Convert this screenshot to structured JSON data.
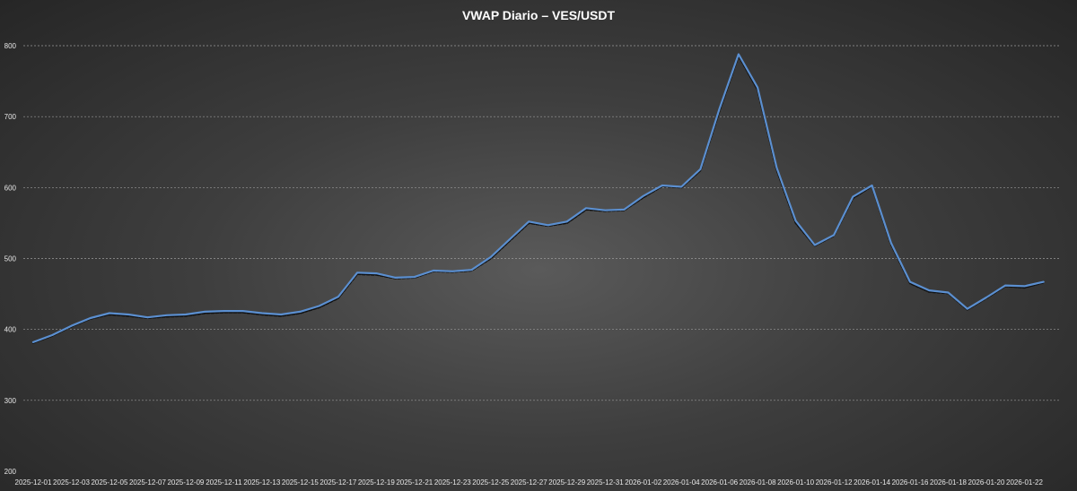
{
  "chart_data": {
    "type": "line",
    "title": "VWAP Diario – VES/USDT",
    "xlabel": "",
    "ylabel": "",
    "ylim": [
      200,
      800
    ],
    "yticks": [
      "200",
      "300",
      "400",
      "500",
      "600",
      "700",
      "800"
    ],
    "grid": true,
    "legend": "none",
    "x": [
      "2025-12-01",
      "2025-12-02",
      "2025-12-03",
      "2025-12-04",
      "2025-12-05",
      "2025-12-06",
      "2025-12-07",
      "2025-12-08",
      "2025-12-09",
      "2025-12-10",
      "2025-12-11",
      "2025-12-12",
      "2025-12-13",
      "2025-12-14",
      "2025-12-15",
      "2025-12-16",
      "2025-12-17",
      "2025-12-18",
      "2025-12-19",
      "2025-12-20",
      "2025-12-21",
      "2025-12-22",
      "2025-12-23",
      "2025-12-24",
      "2025-12-25",
      "2025-12-26",
      "2025-12-27",
      "2025-12-28",
      "2025-12-29",
      "2025-12-30",
      "2025-12-31",
      "2026-01-01",
      "2026-01-02",
      "2026-01-03",
      "2026-01-04",
      "2026-01-05",
      "2026-01-06",
      "2026-01-07",
      "2026-01-08",
      "2026-01-09",
      "2026-01-10",
      "2026-01-11",
      "2026-01-12",
      "2026-01-13",
      "2026-01-14",
      "2026-01-15",
      "2026-01-16",
      "2026-01-17",
      "2026-01-18",
      "2026-01-19",
      "2026-01-20",
      "2026-01-21",
      "2026-01-22",
      "2026-01-23"
    ],
    "xtick_labels": [
      "2025-12-01",
      "2025-12-03",
      "2025-12-05",
      "2025-12-07",
      "2025-12-09",
      "2025-12-11",
      "2025-12-13",
      "2025-12-15",
      "2025-12-17",
      "2025-12-19",
      "2025-12-21",
      "2025-12-23",
      "2025-12-25",
      "2025-12-27",
      "2025-12-29",
      "2025-12-31",
      "2026-01-02",
      "2026-01-04",
      "2026-01-06",
      "2026-01-08",
      "2026-01-10",
      "2026-01-12",
      "2026-01-14",
      "2026-01-16",
      "2026-01-18",
      "2026-01-20",
      "2026-01-22"
    ],
    "series": [
      {
        "style": "solid",
        "color": "#5b8fd0",
        "values": [
          382,
          392,
          405,
          416,
          423,
          421,
          417,
          420,
          421,
          425,
          426,
          426,
          423,
          421,
          425,
          433,
          446,
          480,
          479,
          473,
          474,
          483,
          482,
          484,
          502,
          527,
          552,
          547,
          552,
          571,
          568,
          569,
          588,
          603,
          601,
          626,
          711,
          788,
          741,
          628,
          553,
          519,
          533,
          587,
          603,
          522,
          467,
          455,
          452,
          429,
          445,
          462,
          461,
          467
        ]
      },
      {
        "style": "dashed",
        "color": "#111111",
        "values": [
          381,
          391,
          404,
          415,
          421,
          419,
          416,
          418,
          419,
          423,
          424,
          424,
          421,
          419,
          423,
          431,
          444,
          478,
          477,
          472,
          473,
          482,
          481,
          483,
          500,
          525,
          550,
          546,
          550,
          569,
          567,
          568,
          586,
          602,
          600,
          624,
          708,
          786,
          738,
          625,
          550,
          518,
          532,
          585,
          602,
          520,
          465,
          453,
          451,
          428,
          444,
          461,
          459,
          466
        ]
      }
    ]
  },
  "colors": {
    "gridline": "#9a9a9a",
    "tick_text": "#e6e6e6",
    "title_text": "#ffffff"
  }
}
